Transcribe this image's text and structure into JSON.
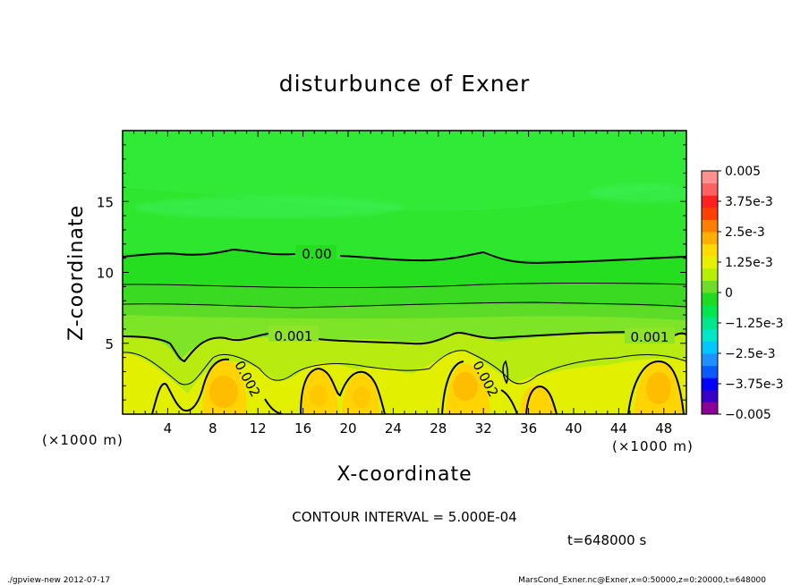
{
  "chart_data": {
    "type": "heatmap",
    "subtype": "filled-contour",
    "title": "disturbunce of Exner",
    "xlabel": "X-coordinate",
    "ylabel": "Z-coordinate",
    "x_unit": "(×1000 m)",
    "xlim": [
      0,
      50
    ],
    "ylim": [
      0,
      20
    ],
    "x_ticks": [
      "4",
      "8",
      "12",
      "16",
      "20",
      "24",
      "28",
      "32",
      "36",
      "40",
      "44",
      "48"
    ],
    "y_ticks": [
      "5",
      "10",
      "15"
    ],
    "colorbar": {
      "range": [
        -0.005,
        0.005
      ],
      "labels": [
        "0.005",
        "3.75e-3",
        "2.5e-3",
        "1.25e-3",
        "0",
        "−1.25e-3",
        "−2.5e-3",
        "−3.75e-3",
        "−0.005"
      ],
      "colors": [
        "#8b0096",
        "#3700c8",
        "#0000ff",
        "#0a5aff",
        "#1e90ff",
        "#00c8ff",
        "#00e6c8",
        "#00e68c",
        "#00e650",
        "#20dc20",
        "#6edc28",
        "#b4f000",
        "#e6f000",
        "#ffdc00",
        "#ffb000",
        "#ff8000",
        "#ff4000",
        "#ff2020",
        "#ff6060",
        "#ff9090"
      ]
    },
    "contour_labels": [
      {
        "text": "0.00",
        "x": 17.2,
        "z": 11.3
      },
      {
        "text": "0.001",
        "x": 14.9,
        "z": 5.6
      },
      {
        "text": "0.001",
        "x": 46.6,
        "z": 5.6
      },
      {
        "text": "0.002",
        "x": 10.6,
        "z": 2.1
      },
      {
        "text": "0.002",
        "x": 30.9,
        "z": 2.1
      }
    ],
    "contour_interval": "CONTOUR INTERVAL = 5.000E-04",
    "time": "t=648000 s"
  },
  "footer": {
    "left": "./gpview-new   2012-07-17",
    "right": "MarsCond_Exner.nc@Exner,x=0:50000,z=0:20000,t=648000"
  }
}
